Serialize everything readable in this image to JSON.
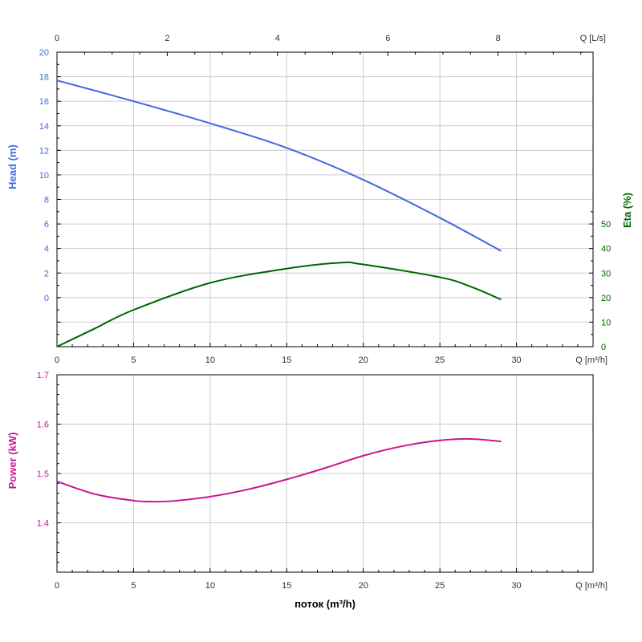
{
  "chart_data": [
    {
      "type": "line",
      "name": "head-eta",
      "x_top": {
        "label": "Q [L/s]",
        "ticks": [
          0,
          2,
          4,
          6,
          8
        ]
      },
      "x_bottom": {
        "label": "Q [m³/h]",
        "ticks": [
          0,
          5,
          10,
          15,
          20,
          25,
          30
        ]
      },
      "xlim": [
        0,
        35
      ],
      "y_left": {
        "label": "Head (m)",
        "ticks": [
          0,
          2,
          4,
          6,
          8,
          10,
          12,
          14,
          16,
          18,
          20
        ],
        "color": "#4169e1"
      },
      "y_right": {
        "label": "Eta (%)",
        "ticks": [
          0,
          10,
          20,
          30,
          40,
          50
        ],
        "color": "#006400"
      },
      "ylim_left": [
        -4,
        20
      ],
      "ylim_right": [
        0,
        120
      ],
      "grid": true,
      "series": [
        {
          "name": "Head (m)",
          "axis": "left",
          "color": "#4169e1",
          "x": [
            0,
            5,
            10,
            15,
            20,
            25,
            29
          ],
          "y": [
            17.7,
            16.0,
            14.2,
            12.2,
            9.6,
            6.5,
            3.8
          ]
        },
        {
          "name": "Eta (%)",
          "axis": "right",
          "color": "#006400",
          "x": [
            0,
            2.5,
            5,
            10,
            15,
            18.5,
            20,
            25,
            27,
            29
          ],
          "y": [
            0,
            7.5,
            15,
            26,
            31.8,
            34.2,
            33.5,
            28.3,
            24.5,
            19.2
          ]
        }
      ]
    },
    {
      "type": "line",
      "name": "power",
      "x_bottom": {
        "label": "Q [m³/h]",
        "ticks": [
          0,
          5,
          10,
          15,
          20,
          25,
          30
        ]
      },
      "xlim": [
        0,
        35
      ],
      "y_left": {
        "label": "Power (kW)",
        "ticks": [
          "1.4",
          "1.5",
          "1.6",
          "1.7"
        ],
        "color": "#cc1493"
      },
      "ylim": [
        1.3,
        1.7
      ],
      "grid": true,
      "series": [
        {
          "name": "Power (kW)",
          "color": "#cc1493",
          "x": [
            0,
            2.5,
            5,
            6,
            7.5,
            10,
            12.5,
            15,
            17.5,
            20,
            22.5,
            25,
            27,
            29
          ],
          "y": [
            1.484,
            1.458,
            1.445,
            1.443,
            1.444,
            1.453,
            1.468,
            1.488,
            1.511,
            1.536,
            1.555,
            1.567,
            1.57,
            1.565
          ]
        }
      ]
    }
  ],
  "footer": {
    "xlabel": "поток (m³/h)"
  }
}
